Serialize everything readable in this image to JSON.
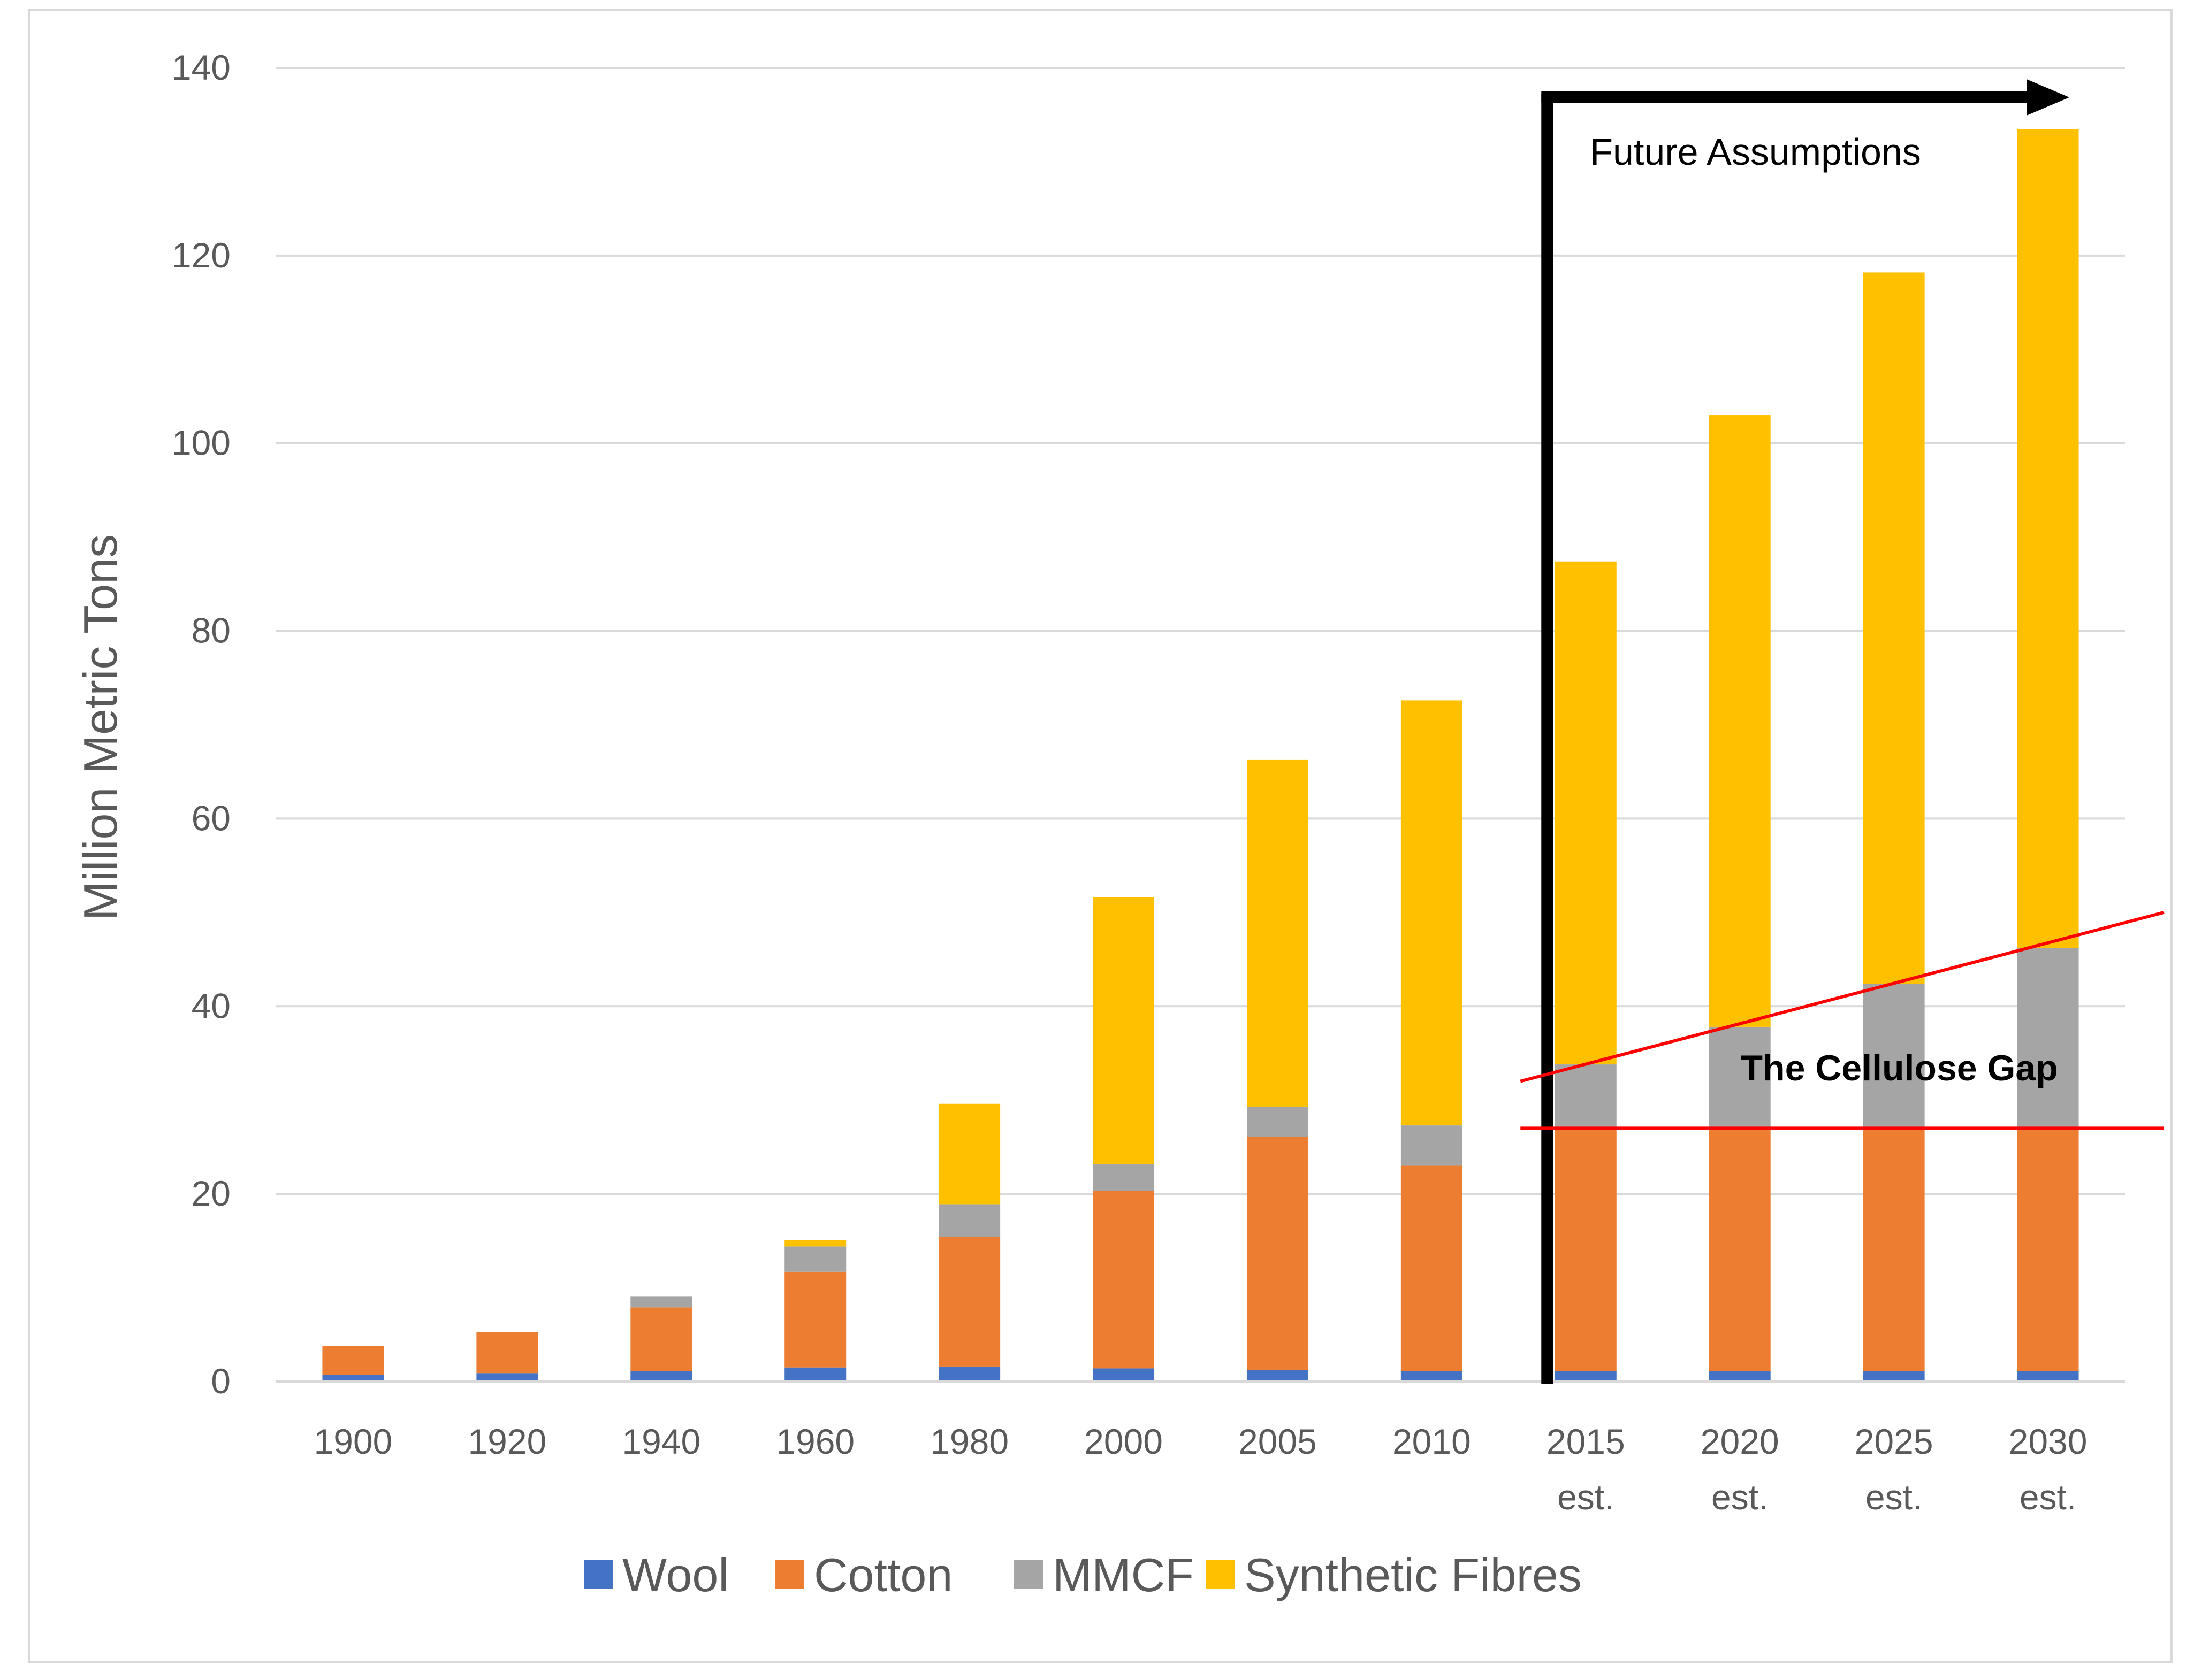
{
  "chart_data": {
    "type": "bar",
    "stacked": true,
    "title": "",
    "xlabel": "",
    "ylabel": "Million Metric Tons",
    "ylim": [
      0,
      140
    ],
    "yticks": [
      0,
      20,
      40,
      60,
      80,
      100,
      120,
      140
    ],
    "grid": true,
    "legend_position": "bottom",
    "categories": [
      [
        "1900"
      ],
      [
        "1920"
      ],
      [
        "1940"
      ],
      [
        "1960"
      ],
      [
        "1980"
      ],
      [
        "2000"
      ],
      [
        "2005"
      ],
      [
        "2010"
      ],
      [
        "2015",
        "est."
      ],
      [
        "2020",
        "est."
      ],
      [
        "2025",
        "est."
      ],
      [
        "2030",
        "est."
      ]
    ],
    "series": [
      {
        "name": "Wool",
        "color": "#4472c4",
        "values": [
          0.7,
          0.9,
          1.1,
          1.5,
          1.6,
          1.4,
          1.2,
          1.1,
          1.1,
          1.1,
          1.1,
          1.1
        ]
      },
      {
        "name": "Cotton",
        "color": "#ed7d31",
        "values": [
          3.1,
          4.4,
          6.8,
          10.2,
          13.8,
          18.9,
          24.9,
          21.9,
          26.0,
          26.0,
          26.0,
          26.0
        ]
      },
      {
        "name": "MMCF",
        "color": "#a5a5a5",
        "values": [
          0.0,
          0.0,
          1.2,
          2.7,
          3.5,
          2.9,
          3.2,
          4.3,
          6.7,
          10.7,
          15.3,
          19.1
        ]
      },
      {
        "name": "Synthetic Fibres",
        "color": "#ffc000",
        "values": [
          0.0,
          0.0,
          0.0,
          0.7,
          10.7,
          28.4,
          37.0,
          45.3,
          53.6,
          65.2,
          75.8,
          87.3
        ]
      }
    ],
    "annotations": {
      "future_label": "Future Assumptions",
      "gap_label": "The Cellulose Gap",
      "gap_color": "#ff0000",
      "arrow_color": "#000000",
      "future_start_category": "2015",
      "gap_lower_value": 27.0,
      "gap_upper_start_value": 32.0,
      "gap_upper_end_value": 50.0
    }
  }
}
